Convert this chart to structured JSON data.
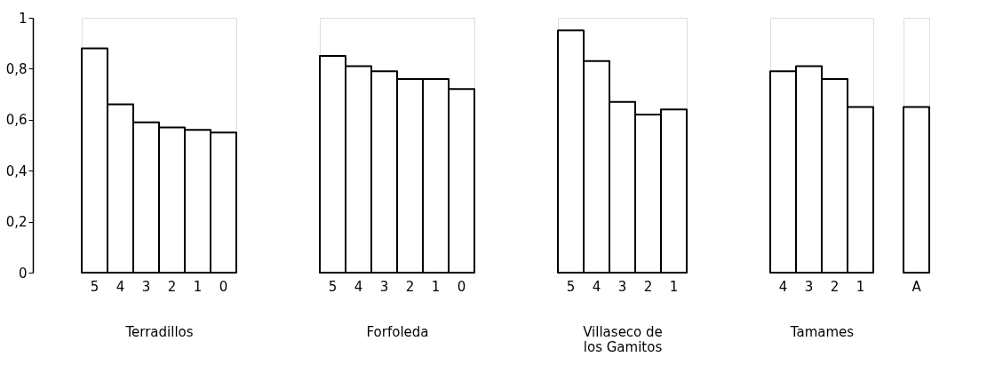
{
  "chart_data": [
    {
      "type": "bar",
      "categories": [
        "5",
        "4",
        "3",
        "2",
        "1",
        "0"
      ],
      "values": [
        0.88,
        0.66,
        0.59,
        0.57,
        0.56,
        0.55
      ],
      "color": "#ffffff",
      "xlabel": "Terradillos",
      "ylim": [
        0,
        1
      ],
      "yticks": [
        0,
        {
          "value": 0.2,
          "label": "0,2"
        },
        {
          "value": 0.4,
          "label": "0,4"
        },
        {
          "value": 0.6,
          "label": "0,6"
        },
        {
          "value": 0.8,
          "label": "0,8"
        },
        1
      ]
    },
    {
      "type": "bar",
      "categories": [
        "5",
        "4",
        "3",
        "2",
        "1",
        "0"
      ],
      "values": [
        0.85,
        0.81,
        0.79,
        0.76,
        0.76,
        0.72
      ],
      "color": "#ffffff",
      "xlabel": "Forfoleda",
      "ylim": [
        0,
        1
      ],
      "tick_labels": "x"
    },
    {
      "type": "bar",
      "categories": [
        "5",
        "4",
        "3",
        "2",
        "1"
      ],
      "values": [
        0.95,
        0.83,
        0.67,
        0.62,
        0.64
      ],
      "color": "#ffffff",
      "xlabel": "Villaseco de los Gamitos",
      "ylim": [
        0,
        1
      ],
      "tick_labels": "x"
    },
    {
      "type": "bar",
      "categories": [
        "4",
        "3",
        "2",
        "1"
      ],
      "values": [
        0.79,
        0.81,
        0.76,
        0.65
      ],
      "color": "#ffffff",
      "xlabel": "Tamames",
      "ylim": [
        0,
        1
      ],
      "tick_labels": "x"
    },
    {
      "type": "bar",
      "categories": [
        "A"
      ],
      "values": [
        0.65
      ],
      "color": "#ffffff",
      "ylim": [
        0,
        1
      ],
      "tick_labels": "x"
    }
  ]
}
